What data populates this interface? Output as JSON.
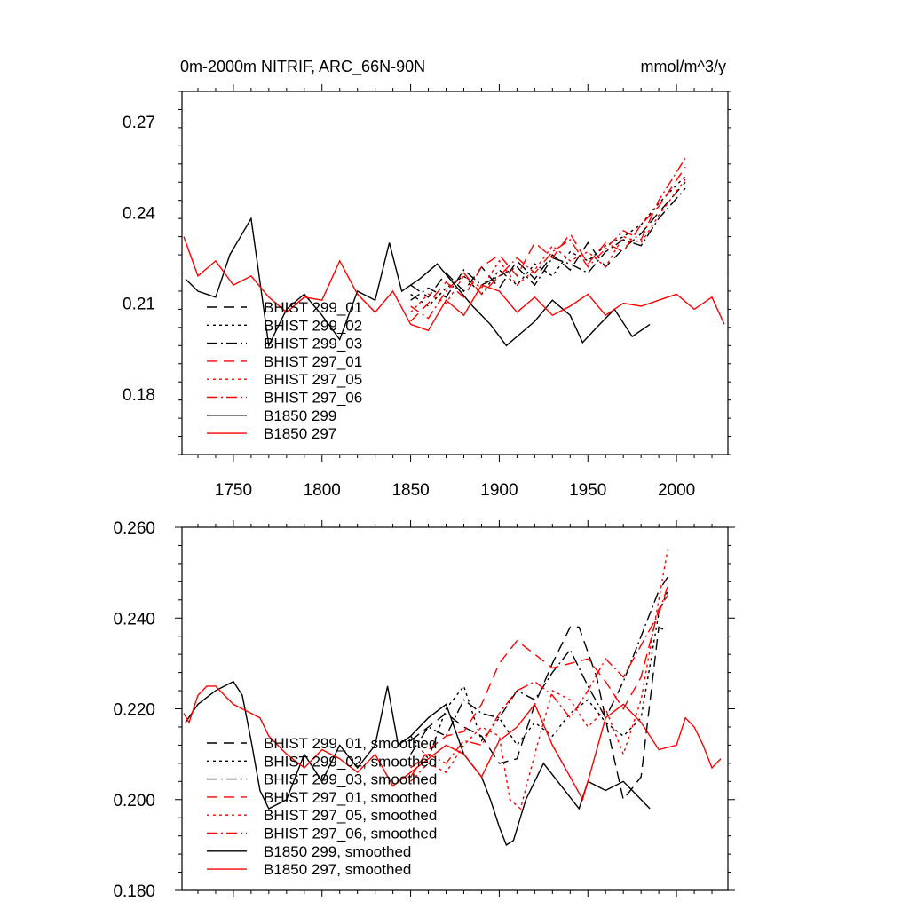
{
  "figure": {
    "title_left": "0m-2000m NITRIF, ARC_66N-90N",
    "title_right": "mmol/m^3/y"
  },
  "chart_data": [
    {
      "type": "line",
      "title": "0m-2000m NITRIF, ARC_66N-90N",
      "units": "mmol/m^3/y",
      "xlabel": "",
      "ylabel": "",
      "xlim": [
        1721,
        2029
      ],
      "ylim": [
        0.16,
        0.28
      ],
      "xticks": [
        1750,
        1800,
        1850,
        1900,
        1950,
        2000
      ],
      "xtick_labels": [
        "1750",
        "1800",
        "1850",
        "1900",
        "1950",
        "2000"
      ],
      "yticks": [
        0.18,
        0.21,
        0.24,
        0.27
      ],
      "ytick_labels": [
        "0.18",
        "0.21",
        "0.24",
        "0.27"
      ],
      "legend_position": "lower-left",
      "series": [
        {
          "name": "BHIST 299_01",
          "color": "#000000",
          "dash": "long-dash",
          "x": [
            1850,
            1860,
            1870,
            1880,
            1890,
            1900,
            1910,
            1920,
            1930,
            1940,
            1950,
            1960,
            1970,
            1980,
            1990,
            2005
          ],
          "y": [
            0.216,
            0.212,
            0.22,
            0.214,
            0.222,
            0.215,
            0.224,
            0.218,
            0.226,
            0.221,
            0.23,
            0.222,
            0.228,
            0.233,
            0.24,
            0.25
          ]
        },
        {
          "name": "BHIST 299_02",
          "color": "#000000",
          "dash": "dot",
          "x": [
            1850,
            1860,
            1870,
            1880,
            1890,
            1900,
            1910,
            1920,
            1930,
            1940,
            1950,
            1960,
            1970,
            1980,
            1990,
            2005
          ],
          "y": [
            0.213,
            0.209,
            0.215,
            0.219,
            0.213,
            0.221,
            0.216,
            0.223,
            0.219,
            0.227,
            0.224,
            0.229,
            0.232,
            0.236,
            0.243,
            0.252
          ]
        },
        {
          "name": "BHIST 299_03",
          "color": "#000000",
          "dash": "dash-dot",
          "x": [
            1850,
            1860,
            1870,
            1880,
            1890,
            1900,
            1910,
            1920,
            1930,
            1940,
            1950,
            1960,
            1970,
            1980,
            1990,
            2005
          ],
          "y": [
            0.211,
            0.215,
            0.212,
            0.221,
            0.216,
            0.219,
            0.222,
            0.216,
            0.225,
            0.223,
            0.22,
            0.227,
            0.231,
            0.229,
            0.238,
            0.248
          ]
        },
        {
          "name": "BHIST 297_01",
          "color": "#ff0000",
          "dash": "long-dash",
          "x": [
            1850,
            1860,
            1870,
            1880,
            1890,
            1900,
            1910,
            1920,
            1930,
            1940,
            1950,
            1960,
            1970,
            1980,
            1990,
            2005
          ],
          "y": [
            0.204,
            0.21,
            0.217,
            0.212,
            0.222,
            0.226,
            0.219,
            0.23,
            0.225,
            0.233,
            0.223,
            0.23,
            0.227,
            0.236,
            0.242,
            0.255
          ]
        },
        {
          "name": "BHIST 297_05",
          "color": "#ff0000",
          "dash": "dot",
          "x": [
            1850,
            1860,
            1870,
            1880,
            1890,
            1900,
            1910,
            1920,
            1930,
            1940,
            1950,
            1960,
            1970,
            1980,
            1990,
            2005
          ],
          "y": [
            0.207,
            0.213,
            0.21,
            0.219,
            0.215,
            0.224,
            0.216,
            0.221,
            0.229,
            0.224,
            0.227,
            0.222,
            0.232,
            0.23,
            0.239,
            0.251
          ]
        },
        {
          "name": "BHIST 297_06",
          "color": "#ff0000",
          "dash": "dash-dot",
          "x": [
            1850,
            1860,
            1870,
            1880,
            1890,
            1900,
            1910,
            1920,
            1930,
            1940,
            1950,
            1960,
            1970,
            1980,
            1990,
            2005
          ],
          "y": [
            0.209,
            0.205,
            0.214,
            0.22,
            0.213,
            0.219,
            0.225,
            0.22,
            0.227,
            0.231,
            0.222,
            0.228,
            0.234,
            0.231,
            0.244,
            0.258
          ]
        },
        {
          "name": "B1850 299",
          "color": "#000000",
          "dash": "solid",
          "x": [
            1723,
            1730,
            1740,
            1748,
            1755,
            1760,
            1765,
            1770,
            1780,
            1790,
            1800,
            1810,
            1820,
            1830,
            1838,
            1845,
            1855,
            1865,
            1875,
            1885,
            1895,
            1904,
            1910,
            1920,
            1930,
            1940,
            1947,
            1955,
            1965,
            1975,
            1985
          ],
          "y": [
            0.218,
            0.214,
            0.212,
            0.226,
            0.233,
            0.238,
            0.217,
            0.196,
            0.208,
            0.213,
            0.206,
            0.198,
            0.214,
            0.211,
            0.23,
            0.214,
            0.218,
            0.223,
            0.216,
            0.209,
            0.203,
            0.196,
            0.199,
            0.204,
            0.211,
            0.206,
            0.197,
            0.202,
            0.208,
            0.199,
            0.203
          ]
        },
        {
          "name": "B1850 297",
          "color": "#ff0000",
          "dash": "solid",
          "x": [
            1722,
            1730,
            1740,
            1750,
            1760,
            1770,
            1780,
            1790,
            1800,
            1810,
            1820,
            1830,
            1840,
            1850,
            1860,
            1870,
            1880,
            1890,
            1900,
            1910,
            1920,
            1930,
            1940,
            1950,
            1960,
            1970,
            1980,
            1990,
            2000,
            2010,
            2020,
            2027
          ],
          "y": [
            0.232,
            0.219,
            0.224,
            0.216,
            0.219,
            0.212,
            0.207,
            0.212,
            0.211,
            0.224,
            0.213,
            0.207,
            0.214,
            0.203,
            0.201,
            0.211,
            0.206,
            0.216,
            0.214,
            0.207,
            0.212,
            0.206,
            0.209,
            0.213,
            0.206,
            0.21,
            0.209,
            0.211,
            0.213,
            0.208,
            0.212,
            0.203
          ]
        }
      ]
    },
    {
      "type": "line",
      "title": "",
      "xlabel": "",
      "ylabel": "",
      "xlim": [
        1721,
        2029
      ],
      "ylim": [
        0.18,
        0.26
      ],
      "xticks": [
        1750,
        1800,
        1850,
        1900,
        1950,
        2000
      ],
      "yticks": [
        0.18,
        0.2,
        0.22,
        0.24,
        0.26
      ],
      "ytick_labels": [
        "0.180",
        "0.200",
        "0.220",
        "0.240",
        "0.260"
      ],
      "legend_position": "lower-left",
      "series": [
        {
          "name": "BHIST 299_01, smoothed",
          "color": "#000000",
          "dash": "long-dash",
          "x": [
            1850,
            1860,
            1870,
            1880,
            1890,
            1900,
            1910,
            1920,
            1930,
            1940,
            1945,
            1955,
            1962,
            1970,
            1980,
            1990,
            1995
          ],
          "y": [
            0.213,
            0.216,
            0.219,
            0.216,
            0.214,
            0.208,
            0.209,
            0.221,
            0.23,
            0.238,
            0.238,
            0.227,
            0.214,
            0.2,
            0.205,
            0.238,
            0.237
          ]
        },
        {
          "name": "BHIST 299_02, smoothed",
          "color": "#000000",
          "dash": "dot",
          "x": [
            1850,
            1860,
            1870,
            1880,
            1890,
            1900,
            1910,
            1920,
            1930,
            1940,
            1950,
            1960,
            1970,
            1980,
            1990,
            1995
          ],
          "y": [
            0.214,
            0.209,
            0.22,
            0.225,
            0.213,
            0.218,
            0.212,
            0.217,
            0.214,
            0.219,
            0.222,
            0.217,
            0.214,
            0.218,
            0.241,
            0.246
          ]
        },
        {
          "name": "BHIST 299_03, smoothed",
          "color": "#000000",
          "dash": "dash-dot",
          "x": [
            1850,
            1860,
            1870,
            1880,
            1890,
            1900,
            1910,
            1920,
            1930,
            1940,
            1950,
            1960,
            1970,
            1980,
            1990,
            1995
          ],
          "y": [
            0.21,
            0.216,
            0.214,
            0.222,
            0.219,
            0.218,
            0.224,
            0.222,
            0.228,
            0.233,
            0.225,
            0.218,
            0.226,
            0.236,
            0.246,
            0.249
          ]
        },
        {
          "name": "BHIST 297_01, smoothed",
          "color": "#ff0000",
          "dash": "long-dash",
          "x": [
            1850,
            1860,
            1870,
            1880,
            1890,
            1900,
            1910,
            1920,
            1930,
            1940,
            1950,
            1960,
            1970,
            1980,
            1990,
            1995
          ],
          "y": [
            0.205,
            0.211,
            0.214,
            0.215,
            0.221,
            0.23,
            0.235,
            0.232,
            0.229,
            0.23,
            0.231,
            0.226,
            0.22,
            0.227,
            0.242,
            0.245
          ]
        },
        {
          "name": "BHIST 297_05, smoothed",
          "color": "#ff0000",
          "dash": "dot",
          "x": [
            1850,
            1860,
            1870,
            1880,
            1890,
            1900,
            1906,
            1912,
            1920,
            1930,
            1940,
            1950,
            1960,
            1970,
            1980,
            1990,
            1995
          ],
          "y": [
            0.204,
            0.208,
            0.206,
            0.212,
            0.216,
            0.214,
            0.2,
            0.198,
            0.21,
            0.224,
            0.222,
            0.216,
            0.22,
            0.21,
            0.222,
            0.244,
            0.255
          ]
        },
        {
          "name": "BHIST 297_06, smoothed",
          "color": "#ff0000",
          "dash": "dash-dot",
          "x": [
            1850,
            1860,
            1870,
            1880,
            1890,
            1900,
            1910,
            1920,
            1930,
            1940,
            1950,
            1960,
            1970,
            1980,
            1990,
            1995
          ],
          "y": [
            0.207,
            0.21,
            0.208,
            0.213,
            0.212,
            0.219,
            0.224,
            0.226,
            0.223,
            0.218,
            0.224,
            0.231,
            0.227,
            0.234,
            0.241,
            0.247
          ]
        },
        {
          "name": "B1850 299, smoothed",
          "color": "#000000",
          "dash": "solid",
          "x": [
            1723,
            1730,
            1740,
            1745,
            1750,
            1755,
            1760,
            1765,
            1770,
            1780,
            1790,
            1800,
            1810,
            1820,
            1830,
            1837,
            1843,
            1850,
            1860,
            1870,
            1880,
            1890,
            1895,
            1900,
            1904,
            1908,
            1915,
            1925,
            1935,
            1945,
            1950,
            1960,
            1970,
            1980,
            1985
          ],
          "y": [
            0.217,
            0.221,
            0.224,
            0.225,
            0.226,
            0.223,
            0.213,
            0.202,
            0.198,
            0.2,
            0.21,
            0.204,
            0.212,
            0.207,
            0.212,
            0.225,
            0.212,
            0.214,
            0.218,
            0.221,
            0.21,
            0.205,
            0.2,
            0.194,
            0.19,
            0.191,
            0.2,
            0.208,
            0.203,
            0.198,
            0.204,
            0.202,
            0.204,
            0.2,
            0.198
          ]
        },
        {
          "name": "B1850 297, smoothed",
          "color": "#ff0000",
          "dash": "solid",
          "x": [
            1722,
            1725,
            1730,
            1735,
            1740,
            1745,
            1750,
            1755,
            1760,
            1765,
            1770,
            1780,
            1790,
            1800,
            1810,
            1820,
            1830,
            1840,
            1850,
            1860,
            1870,
            1880,
            1890,
            1900,
            1910,
            1920,
            1930,
            1940,
            1947,
            1950,
            1960,
            1970,
            1980,
            1990,
            2000,
            2005,
            2010,
            2015,
            2020,
            2025
          ],
          "y": [
            0.219,
            0.217,
            0.223,
            0.225,
            0.225,
            0.223,
            0.221,
            0.22,
            0.219,
            0.218,
            0.214,
            0.21,
            0.207,
            0.211,
            0.209,
            0.206,
            0.21,
            0.203,
            0.206,
            0.209,
            0.212,
            0.21,
            0.205,
            0.213,
            0.216,
            0.221,
            0.212,
            0.205,
            0.2,
            0.204,
            0.218,
            0.221,
            0.217,
            0.211,
            0.212,
            0.218,
            0.216,
            0.212,
            0.207,
            0.209
          ]
        }
      ]
    }
  ]
}
